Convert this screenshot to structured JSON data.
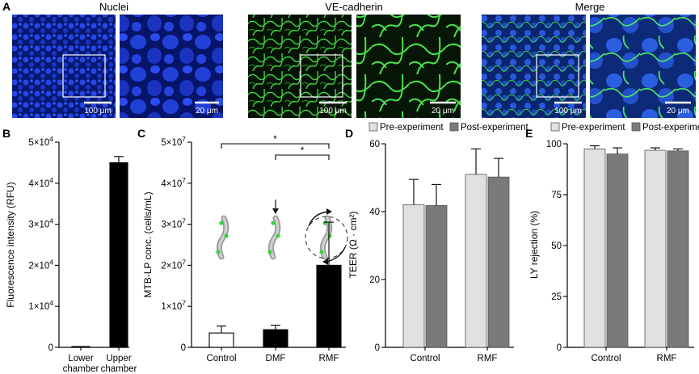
{
  "panel_a": {
    "letter": "A",
    "columns": [
      {
        "title": "Nuclei",
        "scale_low": "100 μm",
        "scale_high": "20 μm",
        "colors": [
          "#0a1a8c",
          "#1c3ad8",
          "#2b4ff0"
        ]
      },
      {
        "title": "VE-cadherin",
        "scale_low": "100 μm",
        "scale_high": "20 μm",
        "colors": [
          "#071a07",
          "#1e7a1e",
          "#4be34b"
        ]
      },
      {
        "title": "Merge",
        "scale_low": "100 μm",
        "scale_high": "20 μm",
        "colors": [
          "#0e2a6a",
          "#1f56c8",
          "#37c35a"
        ]
      }
    ]
  },
  "chart_data": [
    {
      "panel": "B",
      "type": "bar",
      "categories": [
        "Lower\nchamber",
        "Upper\nchamber"
      ],
      "values": [
        0,
        45000
      ],
      "errors": [
        150,
        1500
      ],
      "colors": [
        "#000000",
        "#000000"
      ],
      "ylabel": "Fluorescence intensity (RFU)",
      "ylim": [
        0,
        50000
      ],
      "yticks": [
        {
          "v": 0,
          "base": "0",
          "exp": ""
        },
        {
          "v": 10000,
          "base": "1×10",
          "exp": "4"
        },
        {
          "v": 20000,
          "base": "2×10",
          "exp": "4"
        },
        {
          "v": 30000,
          "base": "3×10",
          "exp": "4"
        },
        {
          "v": 40000,
          "base": "4×10",
          "exp": "4"
        },
        {
          "v": 50000,
          "base": "5×10",
          "exp": "4"
        }
      ]
    },
    {
      "panel": "C",
      "type": "bar",
      "categories": [
        "Control",
        "DMF",
        "RMF"
      ],
      "values": [
        3500000,
        4300000,
        20000000
      ],
      "errors": [
        1700000,
        1100000,
        10500000
      ],
      "colors": [
        "#ffffff",
        "#000000",
        "#000000"
      ],
      "ylabel": "MTB-LP conc. (cells/mL)",
      "ylim": [
        0,
        50000000
      ],
      "yticks": [
        {
          "v": 0,
          "base": "0",
          "exp": ""
        },
        {
          "v": 10000000,
          "base": "1×10",
          "exp": "7"
        },
        {
          "v": 20000000,
          "base": "2×10",
          "exp": "7"
        },
        {
          "v": 30000000,
          "base": "3×10",
          "exp": "7"
        },
        {
          "v": 40000000,
          "base": "4×10",
          "exp": "7"
        },
        {
          "v": 50000000,
          "base": "5×10",
          "exp": "7"
        }
      ],
      "significance": [
        {
          "from": "Control",
          "to": "RMF",
          "label": "*"
        },
        {
          "from": "DMF",
          "to": "RMF",
          "label": "*"
        }
      ]
    },
    {
      "panel": "D",
      "type": "bar",
      "categories": [
        "Control",
        "RMF"
      ],
      "series": [
        {
          "name": "Pre-experiment",
          "values": [
            42,
            51
          ],
          "errors": [
            7.5,
            7.5
          ],
          "color": "#e0e0e0"
        },
        {
          "name": "Post-experiment",
          "values": [
            41.8,
            50.2
          ],
          "errors": [
            6.2,
            5.5
          ],
          "color": "#7a7a7a"
        }
      ],
      "ylabel": "TEER (Ω · cm²)",
      "ylim": [
        0,
        60
      ],
      "yticks": [
        {
          "v": 0,
          "base": "0",
          "exp": ""
        },
        {
          "v": 20,
          "base": "20",
          "exp": ""
        },
        {
          "v": 40,
          "base": "40",
          "exp": ""
        },
        {
          "v": 60,
          "base": "60",
          "exp": ""
        }
      ],
      "legend": "top"
    },
    {
      "panel": "E",
      "type": "bar",
      "categories": [
        "Control",
        "RMF"
      ],
      "series": [
        {
          "name": "Pre-experiment",
          "values": [
            97.5,
            96.8
          ],
          "errors": [
            1.5,
            1.2
          ],
          "color": "#e0e0e0"
        },
        {
          "name": "Post-experiment",
          "values": [
            95,
            96.5
          ],
          "errors": [
            3,
            1
          ],
          "color": "#7a7a7a"
        }
      ],
      "ylabel": "LY rejection (%)",
      "ylim": [
        0,
        100
      ],
      "yticks": [
        {
          "v": 0,
          "base": "0",
          "exp": ""
        },
        {
          "v": 25,
          "base": "25",
          "exp": ""
        },
        {
          "v": 50,
          "base": "50",
          "exp": ""
        },
        {
          "v": 75,
          "base": "75",
          "exp": ""
        },
        {
          "v": 100,
          "base": "100",
          "exp": ""
        }
      ],
      "legend": "top"
    }
  ]
}
